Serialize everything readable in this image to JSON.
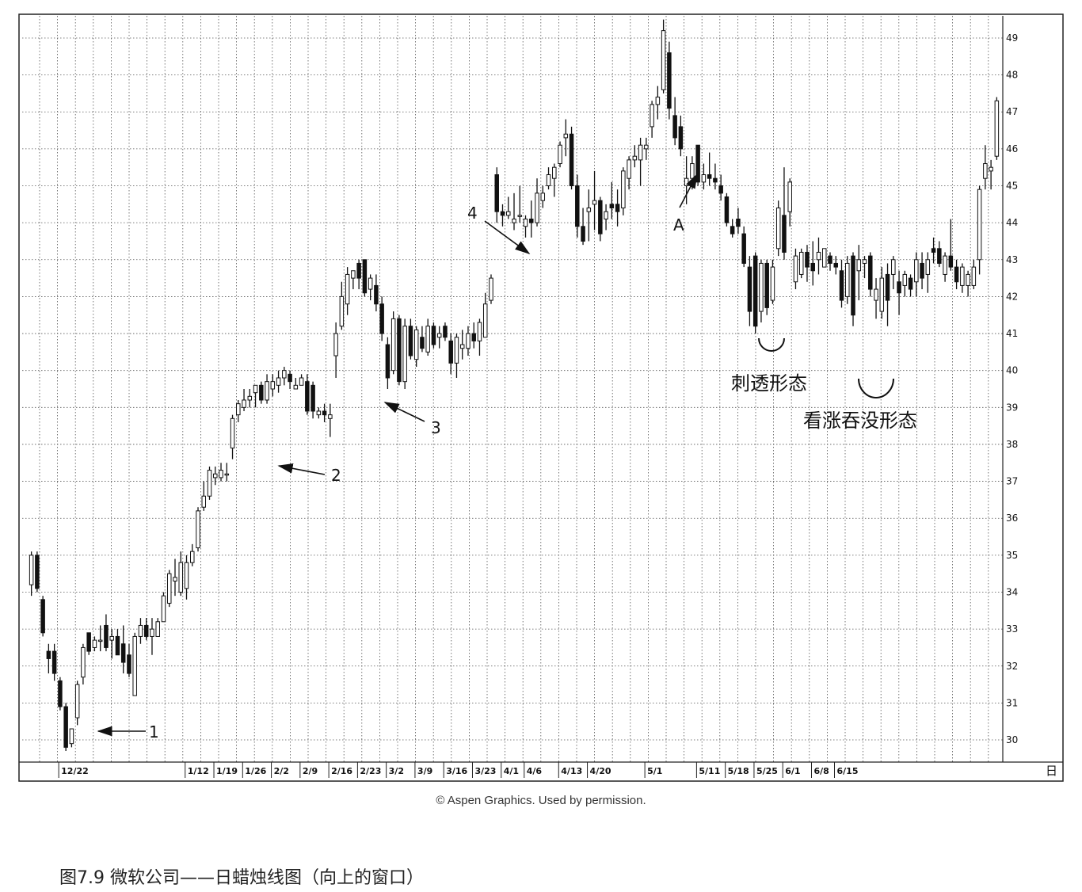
{
  "chart_data": {
    "type": "candlestick",
    "period_label": "日",
    "y_ticks": [
      30,
      31,
      32,
      33,
      34,
      35,
      36,
      37,
      38,
      39,
      40,
      41,
      42,
      43,
      44,
      45,
      46,
      47,
      48,
      49
    ],
    "ylim": [
      29.4,
      49.6
    ],
    "grid": true,
    "x_ticks": [
      "12/22",
      "1/12",
      "1/19",
      "1/26",
      "2/2",
      "2/9",
      "2/16",
      "2/23",
      "3/2",
      "3/9",
      "3/16",
      "3/23",
      "4/1",
      "4/6",
      "4/13",
      "4/20",
      "5/1",
      "5/11",
      "5/18",
      "5/25",
      "6/1",
      "6/8",
      "6/15"
    ],
    "series": [
      {
        "values": [
          [
            34.2,
            35.1,
            33.9,
            35.0
          ],
          [
            35.0,
            35.1,
            34.0,
            34.1
          ],
          [
            33.8,
            33.9,
            32.8,
            32.9
          ],
          [
            32.4,
            32.6,
            31.8,
            32.2
          ],
          [
            32.4,
            32.6,
            31.6,
            31.8
          ],
          [
            31.6,
            31.7,
            30.8,
            30.9
          ],
          [
            30.9,
            31.0,
            29.7,
            29.8
          ],
          [
            29.9,
            30.3,
            29.8,
            30.3
          ],
          [
            30.6,
            31.6,
            30.4,
            31.5
          ],
          [
            31.7,
            32.6,
            31.5,
            32.5
          ],
          [
            32.9,
            32.9,
            32.3,
            32.4
          ],
          [
            32.5,
            32.8,
            32.4,
            32.7
          ],
          [
            32.7,
            33.1,
            32.4,
            32.7
          ],
          [
            33.1,
            33.4,
            32.4,
            32.5
          ],
          [
            32.7,
            33.0,
            32.2,
            32.8
          ],
          [
            32.8,
            33.0,
            32.3,
            32.3
          ],
          [
            32.6,
            33.1,
            31.8,
            32.1
          ],
          [
            32.3,
            32.6,
            31.7,
            31.8
          ],
          [
            31.2,
            32.9,
            31.2,
            32.8
          ],
          [
            32.8,
            33.3,
            32.6,
            33.1
          ],
          [
            33.1,
            33.3,
            32.7,
            32.8
          ],
          [
            32.8,
            33.3,
            32.3,
            33.0
          ],
          [
            32.8,
            33.3,
            32.8,
            33.2
          ],
          [
            33.2,
            34.0,
            33.2,
            33.9
          ],
          [
            33.7,
            34.6,
            33.6,
            34.5
          ],
          [
            34.3,
            34.9,
            33.9,
            34.4
          ],
          [
            34.0,
            35.1,
            33.9,
            34.8
          ],
          [
            34.1,
            35.0,
            33.8,
            34.8
          ],
          [
            34.8,
            35.3,
            34.7,
            35.1
          ],
          [
            35.2,
            36.3,
            35.1,
            36.2
          ],
          [
            36.3,
            37.0,
            36.2,
            36.6
          ],
          [
            36.6,
            37.4,
            36.5,
            37.3
          ],
          [
            37.1,
            37.4,
            36.9,
            37.2
          ],
          [
            37.1,
            37.5,
            37.0,
            37.3
          ],
          [
            37.2,
            37.5,
            37.0,
            37.2
          ],
          [
            37.9,
            38.8,
            37.6,
            38.7
          ],
          [
            38.8,
            39.2,
            38.6,
            39.1
          ],
          [
            39.0,
            39.5,
            38.9,
            39.2
          ],
          [
            39.2,
            39.5,
            39.0,
            39.3
          ],
          [
            39.4,
            39.6,
            39.0,
            39.6
          ],
          [
            39.6,
            39.7,
            39.1,
            39.2
          ],
          [
            39.2,
            39.9,
            39.1,
            39.7
          ],
          [
            39.5,
            39.9,
            39.3,
            39.7
          ],
          [
            39.6,
            40.0,
            39.4,
            39.8
          ],
          [
            39.8,
            40.1,
            39.6,
            40.0
          ],
          [
            39.9,
            40.0,
            39.5,
            39.7
          ],
          [
            39.5,
            39.8,
            39.5,
            39.6
          ],
          [
            39.6,
            39.9,
            39.6,
            39.8
          ],
          [
            39.7,
            39.9,
            38.8,
            38.9
          ],
          [
            39.6,
            39.7,
            38.7,
            38.9
          ],
          [
            38.8,
            39.0,
            38.7,
            38.9
          ],
          [
            38.9,
            39.1,
            38.6,
            38.8
          ],
          [
            38.7,
            39.1,
            38.2,
            38.8
          ],
          [
            40.4,
            41.3,
            39.8,
            41.0
          ],
          [
            41.2,
            42.4,
            41.1,
            42.0
          ],
          [
            41.8,
            42.8,
            41.5,
            42.6
          ],
          [
            42.5,
            42.7,
            42.2,
            42.7
          ],
          [
            42.9,
            43.0,
            42.2,
            42.5
          ],
          [
            43.0,
            43.0,
            42.0,
            42.1
          ],
          [
            42.2,
            42.6,
            41.9,
            42.5
          ],
          [
            42.3,
            42.6,
            41.6,
            41.8
          ],
          [
            41.8,
            42.0,
            40.8,
            41.0
          ],
          [
            40.7,
            40.9,
            39.5,
            39.8
          ],
          [
            40.0,
            41.6,
            39.9,
            41.4
          ],
          [
            41.4,
            41.5,
            39.6,
            39.7
          ],
          [
            39.7,
            41.4,
            39.5,
            41.2
          ],
          [
            41.2,
            41.4,
            40.3,
            40.4
          ],
          [
            40.3,
            41.2,
            40.1,
            41.1
          ],
          [
            40.9,
            41.2,
            40.5,
            40.6
          ],
          [
            40.5,
            41.4,
            40.4,
            41.2
          ],
          [
            41.2,
            41.3,
            40.6,
            40.7
          ],
          [
            40.9,
            41.2,
            40.6,
            41.0
          ],
          [
            41.2,
            41.3,
            40.8,
            40.9
          ],
          [
            40.8,
            41.0,
            39.9,
            40.2
          ],
          [
            40.2,
            41.0,
            39.8,
            40.9
          ],
          [
            40.6,
            41.1,
            40.3,
            40.7
          ],
          [
            40.6,
            41.2,
            40.4,
            41.0
          ],
          [
            41.0,
            41.3,
            40.6,
            40.8
          ],
          [
            40.8,
            41.4,
            40.4,
            41.3
          ],
          [
            40.9,
            42.1,
            40.9,
            41.8
          ],
          [
            41.9,
            42.6,
            41.8,
            42.5
          ],
          [
            45.3,
            45.5,
            44.0,
            44.3
          ],
          [
            44.3,
            44.5,
            43.9,
            44.2
          ],
          [
            44.2,
            44.7,
            44.1,
            44.3
          ],
          [
            44.0,
            44.8,
            43.8,
            44.1
          ],
          [
            44.2,
            45.0,
            44.0,
            44.2
          ],
          [
            43.9,
            44.2,
            43.6,
            44.1
          ],
          [
            44.1,
            44.6,
            43.6,
            44.0
          ],
          [
            44.0,
            45.2,
            43.9,
            44.8
          ],
          [
            44.6,
            45.0,
            44.4,
            44.8
          ],
          [
            45.0,
            45.5,
            44.9,
            45.3
          ],
          [
            45.2,
            45.6,
            44.7,
            45.5
          ],
          [
            45.6,
            46.2,
            45.5,
            46.1
          ],
          [
            46.3,
            46.8,
            45.8,
            46.4
          ],
          [
            46.4,
            46.6,
            44.9,
            45.0
          ],
          [
            45.0,
            45.3,
            43.6,
            43.9
          ],
          [
            43.9,
            44.4,
            43.4,
            43.5
          ],
          [
            44.3,
            44.9,
            43.5,
            44.4
          ],
          [
            44.5,
            45.4,
            43.8,
            44.6
          ],
          [
            44.6,
            44.7,
            43.5,
            43.7
          ],
          [
            44.1,
            44.5,
            43.8,
            44.3
          ],
          [
            44.5,
            45.1,
            44.1,
            44.4
          ],
          [
            44.5,
            44.9,
            43.9,
            44.3
          ],
          [
            44.4,
            45.5,
            44.2,
            45.4
          ],
          [
            45.2,
            45.8,
            44.9,
            45.7
          ],
          [
            45.7,
            46.1,
            45.5,
            45.8
          ],
          [
            45.7,
            46.3,
            45.0,
            46.1
          ],
          [
            46.0,
            46.3,
            45.7,
            46.1
          ],
          [
            46.6,
            47.3,
            46.3,
            47.2
          ],
          [
            47.2,
            47.7,
            46.8,
            47.4
          ],
          [
            47.6,
            49.5,
            47.5,
            49.2
          ],
          [
            48.6,
            48.9,
            46.8,
            47.1
          ],
          [
            46.9,
            47.4,
            46.1,
            46.3
          ],
          [
            46.6,
            46.9,
            45.8,
            46.0
          ],
          [
            45.0,
            45.8,
            44.5,
            45.2
          ],
          [
            45.2,
            45.8,
            44.9,
            45.6
          ],
          [
            46.1,
            46.1,
            45.0,
            45.1
          ],
          [
            45.1,
            45.6,
            44.9,
            45.3
          ],
          [
            45.3,
            45.9,
            45.0,
            45.2
          ],
          [
            45.2,
            45.6,
            44.9,
            45.1
          ],
          [
            45.0,
            45.3,
            44.6,
            44.8
          ],
          [
            44.7,
            44.8,
            43.9,
            44.0
          ],
          [
            43.9,
            44.1,
            43.6,
            43.7
          ],
          [
            44.1,
            44.4,
            43.7,
            43.9
          ],
          [
            43.7,
            43.9,
            42.8,
            42.9
          ],
          [
            42.8,
            43.1,
            41.2,
            41.6
          ],
          [
            43.1,
            43.2,
            41.0,
            41.2
          ],
          [
            41.6,
            43.0,
            41.3,
            42.9
          ],
          [
            42.9,
            43.0,
            41.5,
            41.7
          ],
          [
            41.9,
            43.0,
            41.8,
            42.8
          ],
          [
            43.3,
            44.6,
            43.1,
            44.4
          ],
          [
            44.2,
            45.5,
            43.0,
            43.2
          ],
          [
            44.3,
            45.2,
            43.9,
            45.1
          ],
          [
            42.4,
            43.3,
            42.2,
            43.1
          ],
          [
            42.6,
            43.3,
            42.5,
            43.2
          ],
          [
            43.2,
            43.4,
            42.4,
            42.8
          ],
          [
            42.9,
            43.5,
            42.3,
            42.7
          ],
          [
            43.0,
            43.6,
            42.6,
            43.2
          ],
          [
            42.8,
            43.3,
            42.8,
            43.3
          ],
          [
            43.1,
            43.2,
            42.7,
            42.9
          ],
          [
            42.9,
            43.1,
            42.6,
            42.8
          ],
          [
            42.7,
            43.0,
            41.7,
            41.9
          ],
          [
            42.0,
            43.1,
            41.8,
            42.9
          ],
          [
            43.1,
            43.2,
            41.2,
            41.5
          ],
          [
            42.7,
            43.4,
            41.9,
            43.0
          ],
          [
            42.9,
            43.1,
            42.5,
            43.0
          ],
          [
            43.1,
            43.2,
            42.0,
            42.2
          ],
          [
            41.9,
            42.5,
            41.4,
            42.2
          ],
          [
            41.6,
            42.8,
            41.4,
            42.5
          ],
          [
            42.6,
            42.9,
            41.2,
            41.9
          ],
          [
            42.6,
            43.1,
            42.2,
            43.0
          ],
          [
            42.4,
            42.7,
            41.5,
            42.1
          ],
          [
            42.3,
            42.7,
            42.0,
            42.6
          ],
          [
            42.5,
            42.6,
            42.0,
            42.2
          ],
          [
            42.4,
            43.2,
            42.0,
            43.0
          ],
          [
            42.9,
            43.2,
            42.2,
            42.5
          ],
          [
            42.6,
            43.2,
            42.1,
            43.0
          ],
          [
            43.3,
            43.6,
            42.9,
            43.2
          ],
          [
            43.3,
            43.5,
            42.8,
            42.9
          ],
          [
            42.6,
            43.2,
            42.4,
            43.1
          ],
          [
            43.1,
            44.1,
            42.7,
            42.8
          ],
          [
            42.8,
            43.0,
            42.2,
            42.4
          ],
          [
            42.3,
            42.9,
            42.1,
            42.8
          ],
          [
            42.3,
            42.7,
            42.0,
            42.6
          ],
          [
            42.3,
            43.0,
            42.2,
            42.8
          ],
          [
            43.0,
            45.0,
            42.6,
            44.9
          ],
          [
            45.2,
            46.1,
            44.9,
            45.6
          ],
          [
            45.4,
            45.7,
            44.9,
            45.5
          ],
          [
            45.8,
            47.4,
            45.7,
            47.3
          ]
        ]
      }
    ],
    "annotations": [
      {
        "label": "1"
      },
      {
        "label": "2"
      },
      {
        "label": "3"
      },
      {
        "label": "4"
      },
      {
        "label": "A"
      },
      {
        "label": "刺透形态"
      },
      {
        "label": "看涨吞没形态"
      }
    ]
  },
  "credit": "© Aspen Graphics. Used by permission.",
  "caption": "图7.9 微软公司——日蜡烛线图（向上的窗口）"
}
